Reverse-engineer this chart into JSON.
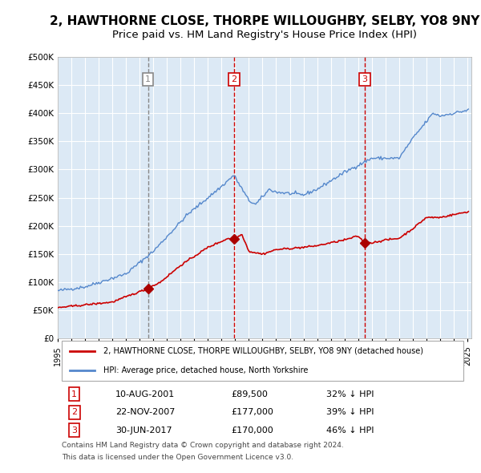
{
  "title": "2, HAWTHORNE CLOSE, THORPE WILLOUGHBY, SELBY, YO8 9NY",
  "subtitle": "Price paid vs. HM Land Registry's House Price Index (HPI)",
  "title_fontsize": 11,
  "subtitle_fontsize": 9.5,
  "bg_color": "#dce9f5",
  "plot_bg_color": "#dce9f5",
  "grid_color": "#ffffff",
  "ylabel": "",
  "ylim": [
    0,
    500000
  ],
  "yticks": [
    0,
    50000,
    100000,
    150000,
    200000,
    250000,
    300000,
    350000,
    400000,
    450000,
    500000
  ],
  "ytick_labels": [
    "£0",
    "£50K",
    "£100K",
    "£150K",
    "£200K",
    "£250K",
    "£300K",
    "£350K",
    "£400K",
    "£450K",
    "£500K"
  ],
  "sale_dates_num": [
    2001.607,
    2007.896,
    2017.496
  ],
  "sale_prices": [
    89500,
    177000,
    170000
  ],
  "vline_labels": [
    "1",
    "2",
    "3"
  ],
  "vline1_style": "dashed",
  "vline2_style": "dashed",
  "vline3_style": "dashed",
  "vline1_color": "#888888",
  "vline2_color": "#cc0000",
  "vline3_color": "#cc0000",
  "red_line_color": "#cc0000",
  "blue_line_color": "#5588cc",
  "marker_color": "#aa0000",
  "legend_red_label": "2, HAWTHORNE CLOSE, THORPE WILLOUGHBY, SELBY, YO8 9NY (detached house)",
  "legend_blue_label": "HPI: Average price, detached house, North Yorkshire",
  "table_rows": [
    [
      "1",
      "10-AUG-2001",
      "£89,500",
      "32% ↓ HPI"
    ],
    [
      "2",
      "22-NOV-2007",
      "£177,000",
      "39% ↓ HPI"
    ],
    [
      "3",
      "30-JUN-2017",
      "£170,000",
      "46% ↓ HPI"
    ]
  ],
  "footer1": "Contains HM Land Registry data © Crown copyright and database right 2024.",
  "footer2": "This data is licensed under the Open Government Licence v3.0."
}
